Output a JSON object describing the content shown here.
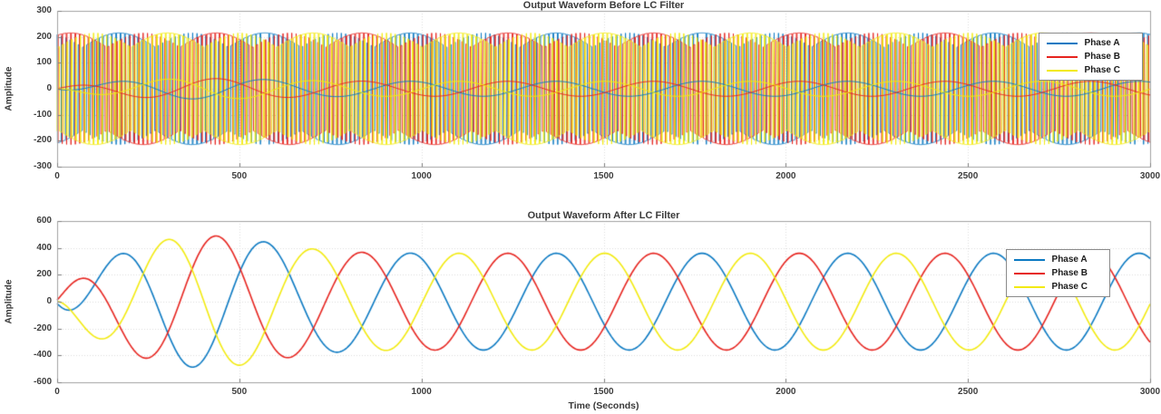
{
  "figure": {
    "background": "#ffffff"
  },
  "chart_data": [
    {
      "type": "line",
      "title": "Output Waveform Before LC Filter",
      "xlabel": "",
      "ylabel": "Amplitude",
      "xlim": [
        0,
        3000
      ],
      "ylim": [
        -300,
        300
      ],
      "xticks": [
        0,
        500,
        1000,
        1500,
        2000,
        2500,
        3000
      ],
      "yticks": [
        -300,
        -200,
        -100,
        0,
        100,
        200,
        300
      ],
      "grid": true,
      "legend": {
        "position": "northeast",
        "entries": [
          {
            "label": "Phase A",
            "color": "#0b79c2"
          },
          {
            "label": "Phase B",
            "color": "#e6231e"
          },
          {
            "label": "Phase C",
            "color": "#f2ea0f"
          }
        ]
      },
      "signal": {
        "kind": "three_phase_spwm",
        "description": "Three-phase sinusoidal-PWM inverter output switching between +/- envelope",
        "envelope_min": 160,
        "envelope_max": 215,
        "fundamental_period_s": 400,
        "carrier_period_s": 12,
        "phase_peak_times_s": [
          170,
          437,
          303
        ],
        "overlay_scale": 0.08
      }
    },
    {
      "type": "line",
      "title": "Output Waveform After LC Filter",
      "xlabel": "Time (Seconds)",
      "ylabel": "Amplitude",
      "xlim": [
        0,
        3000
      ],
      "ylim": [
        -600,
        600
      ],
      "xticks": [
        0,
        500,
        1000,
        1500,
        2000,
        2500,
        3000
      ],
      "yticks": [
        -600,
        -400,
        -200,
        0,
        200,
        400,
        600
      ],
      "grid": true,
      "legend": {
        "position": "northeast",
        "entries": [
          {
            "label": "Phase A",
            "color": "#0b79c2"
          },
          {
            "label": "Phase B",
            "color": "#e6231e"
          },
          {
            "label": "Phase C",
            "color": "#f2ea0f"
          }
        ]
      },
      "signal": {
        "kind": "three_phase_sine",
        "steady_amplitude": 360,
        "rise_time_constant_s": 110,
        "overshoot_amplitude": 140,
        "overshoot_center_s": 390,
        "overshoot_width_s": 260,
        "fundamental_period_s": 400,
        "phase_peak_times_s": [
          170,
          437,
          303
        ]
      }
    }
  ]
}
